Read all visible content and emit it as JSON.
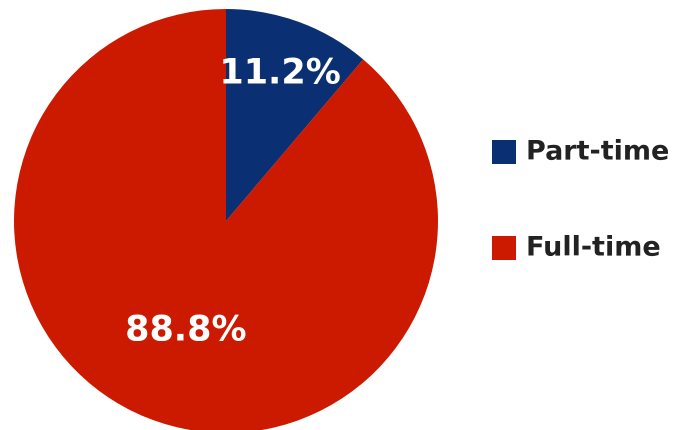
{
  "chart_data": {
    "type": "pie",
    "slices": [
      {
        "name": "Part-time",
        "value": 11.2,
        "label": "11.2%",
        "color": "#0a2f73"
      },
      {
        "name": "Full-time",
        "value": 88.8,
        "label": "88.8%",
        "color": "#cc1a00"
      }
    ],
    "start_angle_deg": 0,
    "direction": "clockwise",
    "legend_position": "right"
  }
}
